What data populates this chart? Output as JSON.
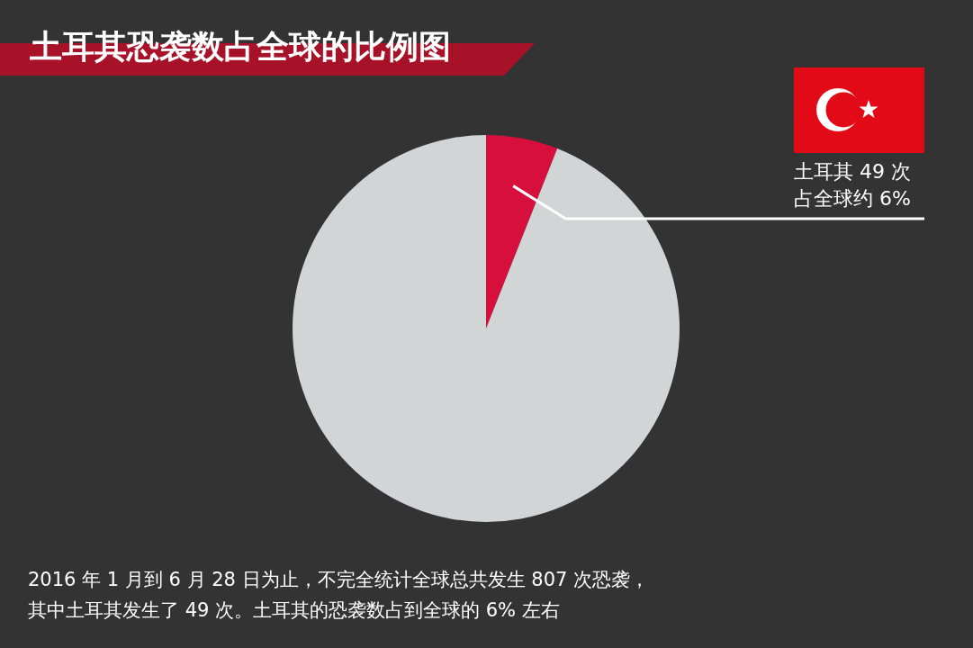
{
  "chart_data": {
    "type": "pie",
    "title": "土耳其恐袭数占全球的比例图",
    "categories": [
      null,
      null
    ],
    "values": [
      6,
      94
    ],
    "colors": [
      "#d60f3c",
      "#d1d5d6"
    ],
    "value_labels": [
      "土耳其 49 次占全球约 6%",
      null
    ],
    "annotations": [
      "2016 年 1 月到 6 月 28 日为止，不完全统计全球总共发生 807 次恐袭，",
      "其中土耳其发生了 49 次。土耳其的恐袭数占到全球的 6% 左右"
    ]
  }
}
